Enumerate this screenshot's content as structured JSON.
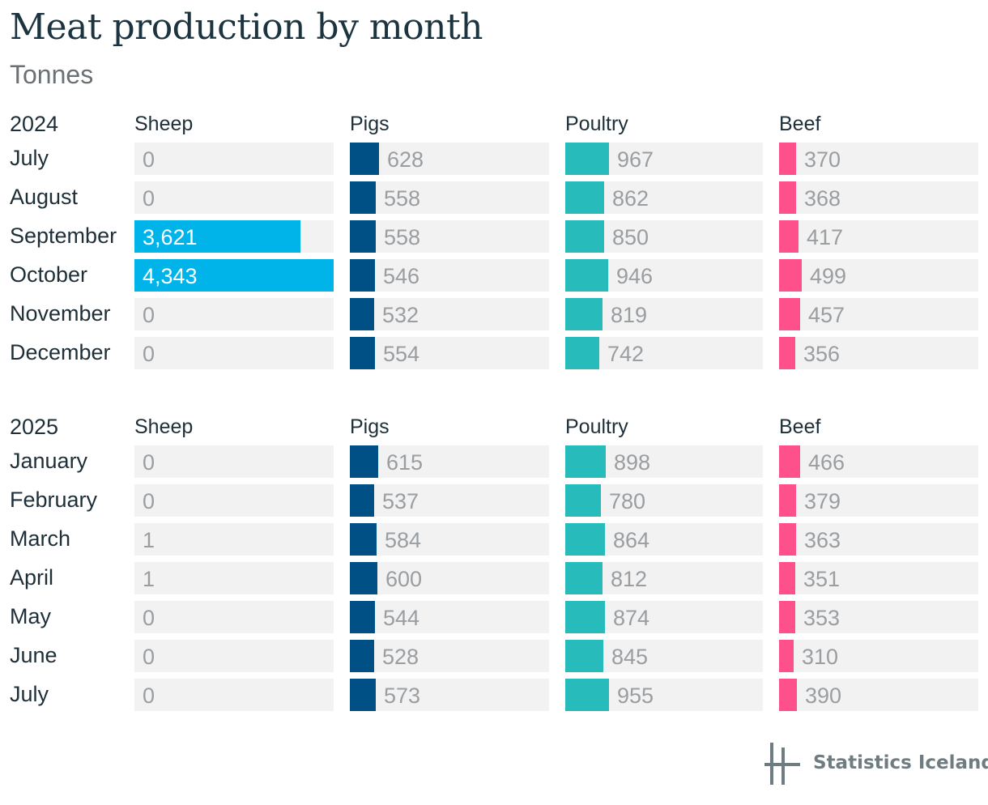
{
  "title": "Meat production by month",
  "subtitle": "Tonnes",
  "brand": "Statistics Iceland",
  "colors": {
    "Sheep": "#00b4ea",
    "Pigs": "#004f85",
    "Poultry": "#27bcbb",
    "Beef": "#fe508b",
    "track": "#f2f2f2"
  },
  "chart_data": {
    "type": "bar",
    "title": "Meat production by month",
    "subtitle": "Tonnes",
    "series_names": [
      "Sheep",
      "Pigs",
      "Poultry",
      "Beef"
    ],
    "xlim": [
      0,
      4343
    ],
    "groups": [
      {
        "year": "2024",
        "rows": [
          {
            "month": "July",
            "Sheep": 0,
            "Pigs": 628,
            "Poultry": 967,
            "Beef": 370
          },
          {
            "month": "August",
            "Sheep": 0,
            "Pigs": 558,
            "Poultry": 862,
            "Beef": 368
          },
          {
            "month": "September",
            "Sheep": 3621,
            "Pigs": 558,
            "Poultry": 850,
            "Beef": 417
          },
          {
            "month": "October",
            "Sheep": 4343,
            "Pigs": 546,
            "Poultry": 946,
            "Beef": 499
          },
          {
            "month": "November",
            "Sheep": 0,
            "Pigs": 532,
            "Poultry": 819,
            "Beef": 457
          },
          {
            "month": "December",
            "Sheep": 0,
            "Pigs": 554,
            "Poultry": 742,
            "Beef": 356
          }
        ]
      },
      {
        "year": "2025",
        "rows": [
          {
            "month": "January",
            "Sheep": 0,
            "Pigs": 615,
            "Poultry": 898,
            "Beef": 466
          },
          {
            "month": "February",
            "Sheep": 0,
            "Pigs": 537,
            "Poultry": 780,
            "Beef": 379
          },
          {
            "month": "March",
            "Sheep": 1,
            "Pigs": 584,
            "Poultry": 864,
            "Beef": 363
          },
          {
            "month": "April",
            "Sheep": 1,
            "Pigs": 600,
            "Poultry": 812,
            "Beef": 351
          },
          {
            "month": "May",
            "Sheep": 0,
            "Pigs": 544,
            "Poultry": 874,
            "Beef": 353
          },
          {
            "month": "June",
            "Sheep": 0,
            "Pigs": 528,
            "Poultry": 845,
            "Beef": 310
          },
          {
            "month": "July",
            "Sheep": 0,
            "Pigs": 573,
            "Poultry": 955,
            "Beef": 390
          }
        ]
      }
    ]
  }
}
